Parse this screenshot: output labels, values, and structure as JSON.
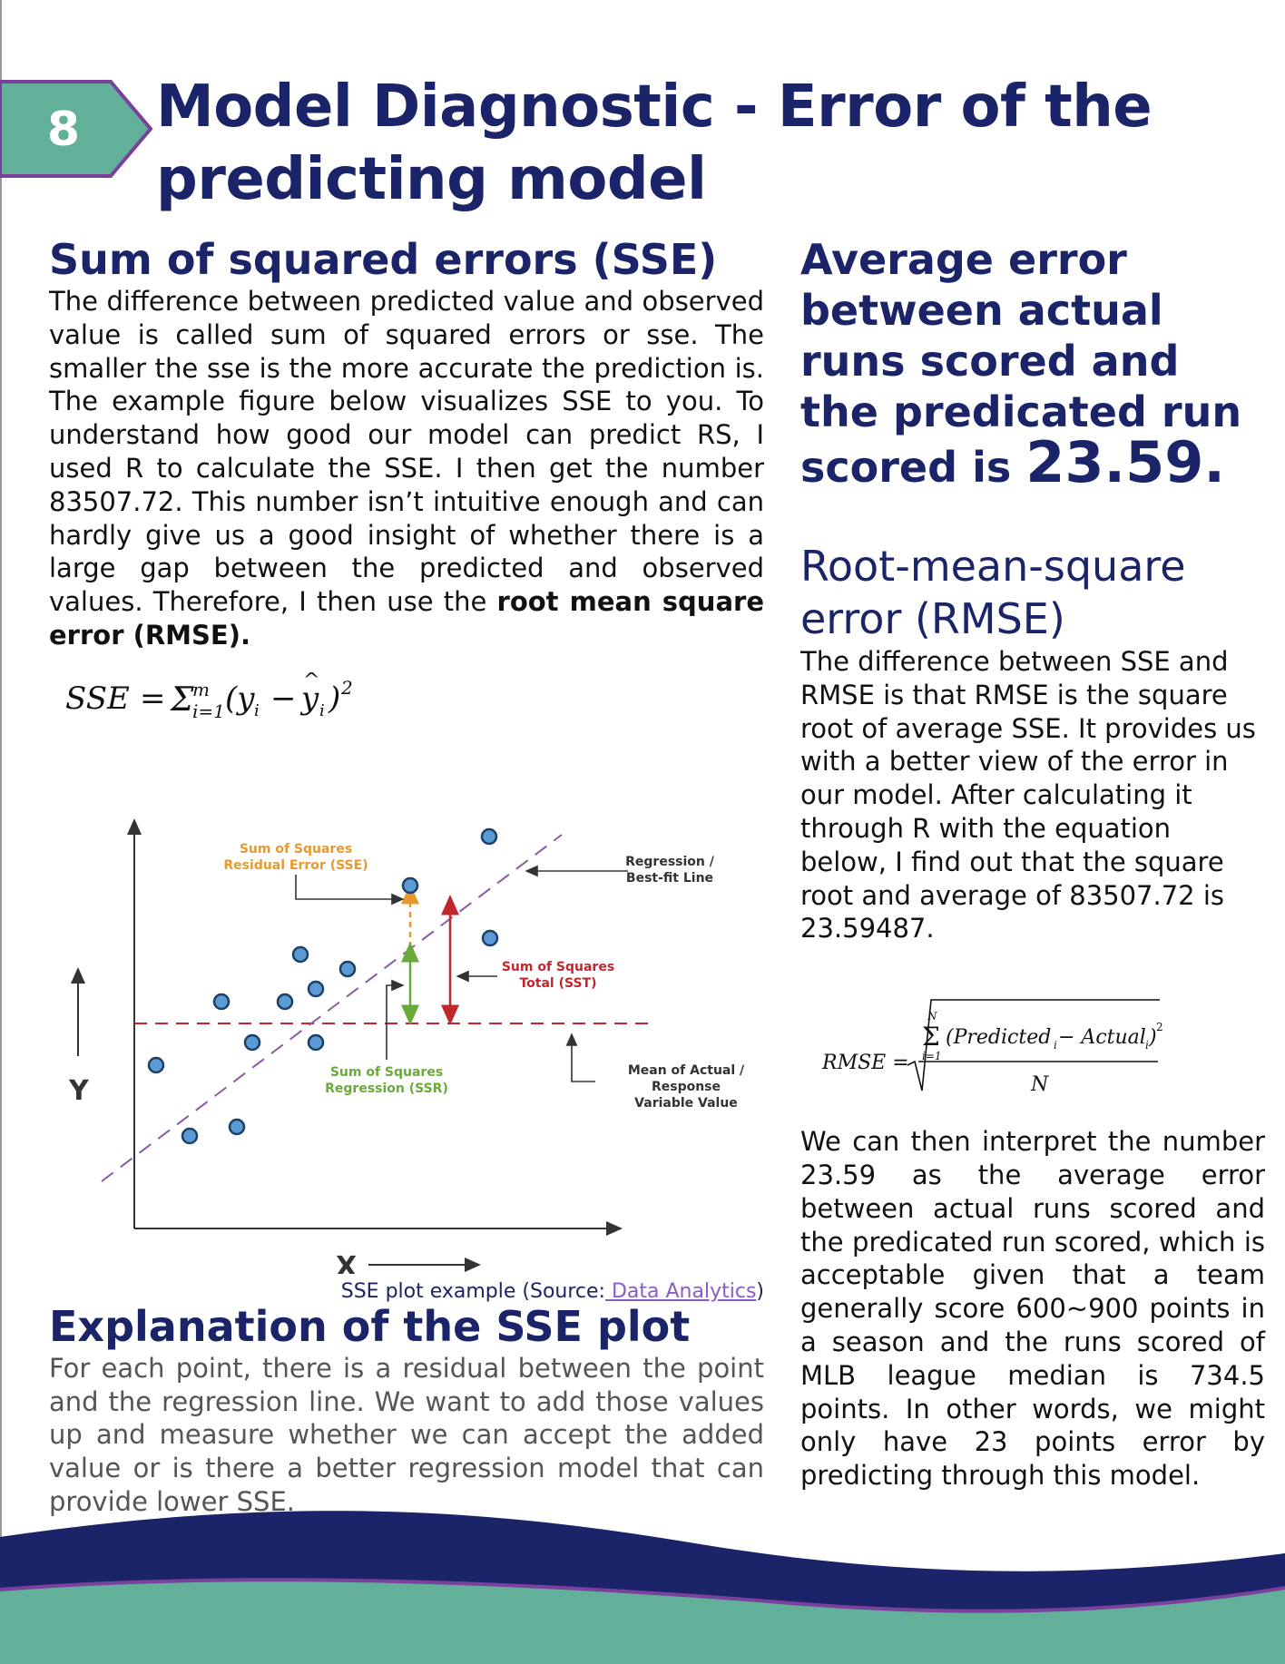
{
  "page": {
    "number": "8",
    "title_line1": "Model Diagnostic - Error of the",
    "title_line2": "predicting model"
  },
  "sse_section": {
    "title": "Sum of squared errors (SSE)",
    "paragraph_text": "The difference between predicted value and observed value is called sum of squared errors or sse. The smaller the sse is the more accurate the prediction is. The example figure below visualizes SSE to you. To understand how good our model can predict RS, I used R to calculate the SSE. I then get the number 83507.72. This number isn’t intuitive enough and can hardly give us a good insight of whether there is a large gap between the predicted and observed values. Therefore, I then use the ",
    "paragraph_bold": "root mean square error (RMSE).",
    "formula": "SSE = Σ_{i=1}^{m} (y_i − ŷ_i)^2"
  },
  "figure": {
    "caption_prefix": "SSE plot example (Source:",
    "caption_link": " Data Analytics",
    "caption_suffix": ")",
    "labels": {
      "sse_line1": "Sum of Squares",
      "sse_line2": "Residual Error (SSE)",
      "regression_line1": "Regression /",
      "regression_line2": "Best-fit Line",
      "sst_line1": "Sum of Squares",
      "sst_line2": "Total (SST)",
      "ssr_line1": "Sum of Squares",
      "ssr_line2": "Regression (SSR)",
      "mean_line1": "Mean of Actual /",
      "mean_line2": "Response",
      "mean_line3": "Variable Value",
      "x_axis": "X",
      "y_axis": "Y"
    },
    "colors": {
      "point_fill": "#5b9bd5",
      "point_stroke": "#1f3f66",
      "sse_label": "#e69a2e",
      "sst_label": "#c0272d",
      "ssr_label": "#6aaa3a",
      "regression_line": "#8b5a9f",
      "mean_line": "#c0272d"
    }
  },
  "explanation": {
    "title": "Explanation of the SSE plot",
    "text": "For each point, there is a residual between the point and the regression line. We want to add those values up and measure whether we can accept the added value or is there a better regression model that can provide lower SSE."
  },
  "average_error": {
    "text": "Average error between actual runs scored and the predicated run scored is ",
    "value": "23.59."
  },
  "rmse_section": {
    "title_line1": "Root-mean-square",
    "title_line2": "error (RMSE)",
    "text": "The difference between SSE and RMSE is that RMSE is the square root of average SSE. It provides us with a better view of the error in our model. After calculating it through R with the equation below, I find out that the square root and average of 83507.72 is 23.59487.",
    "equation": {
      "lhs": "RMSE =",
      "sum_top": "N",
      "sum_bottom": "i=1",
      "numerator": "(Predicted",
      "numerator_sub_i": "i",
      "minus": "− Actual",
      "actual_sub_i": "i",
      "close": ")",
      "power": "2",
      "denominator": "N"
    },
    "interpretation": "We can then interpret the number 23.59 as the average error between actual runs scored and the predicated run scored, which is acceptable given that a team generally score 600~900 points in a season and the runs scored of MLB league median is 734.5 points. In other words, we might only have 23 points error by predicting through this model."
  },
  "theme": {
    "navy": "#1b2369",
    "teal": "#62b09a",
    "purple": "#7b3f9e"
  }
}
